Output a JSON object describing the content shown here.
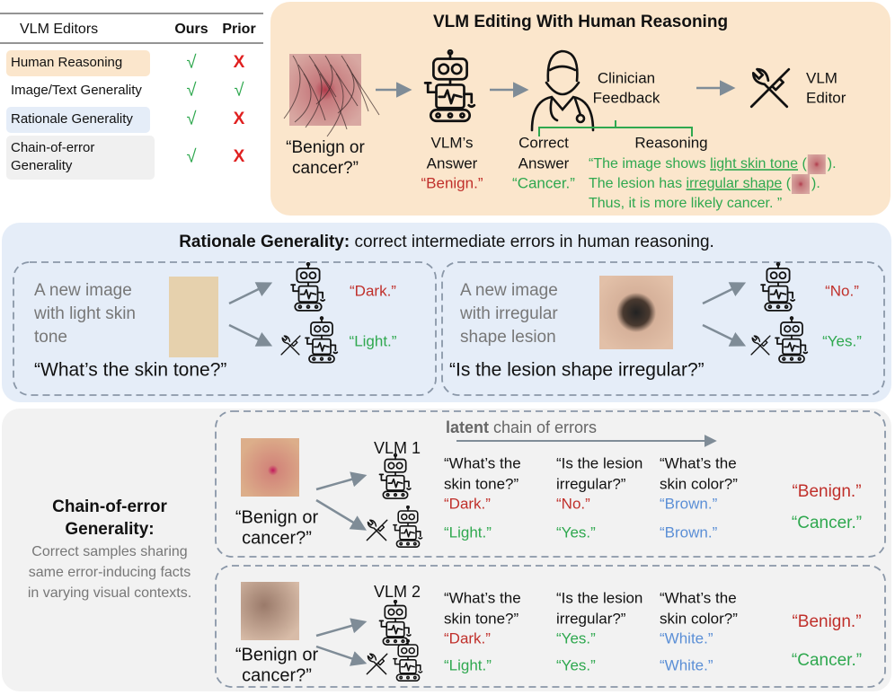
{
  "table": {
    "header": [
      "VLM Editors",
      "Ours",
      "Prior"
    ],
    "rows": [
      {
        "label": [
          "Human Reasoning"
        ],
        "ours": "√",
        "prior": "X"
      },
      {
        "label": [
          "Image/Text Generality"
        ],
        "ours": "√",
        "prior": "√"
      },
      {
        "label": [
          "Rationale Generality"
        ],
        "ours": "√",
        "prior": "X"
      },
      {
        "label": [
          "Chain-of-error",
          "Generality"
        ],
        "ours": "√",
        "prior": "X"
      }
    ]
  },
  "colors": {
    "wrong": "#c0302b",
    "right": "#2fa84f",
    "neutral": "#5b8fd6"
  },
  "overview": {
    "title": "VLM Editing With Human Reasoning",
    "question": [
      "“Benign or",
      "cancer?”"
    ],
    "vlm_label": [
      "VLM’s",
      "Answer"
    ],
    "vlm_answer": "“Benign.”",
    "clinician": [
      "Clinician",
      "Feedback"
    ],
    "editor": [
      "VLM",
      "Editor"
    ],
    "correct_label": [
      "Correct",
      "Answer"
    ],
    "correct_answer": "“Cancer.”",
    "reasoning_label": "Reasoning",
    "reasoning": [
      [
        {
          "text": "“The image shows "
        },
        {
          "text": "light skin tone",
          "underline": true
        },
        {
          "text": " ("
        },
        {
          "text": ")."
        }
      ],
      [
        {
          "text": "The lesion has "
        },
        {
          "text": "irregular shape",
          "underline": true
        },
        {
          "text": " ("
        },
        {
          "text": ")."
        }
      ],
      [
        {
          "text": "Thus, it is more likely cancer. ”"
        }
      ]
    ]
  },
  "rationale": {
    "title_bold": "Rationale Generality:",
    "title_rest": " correct intermediate errors in human reasoning.",
    "cards": [
      {
        "description": [
          "A new image",
          "with light skin",
          "tone"
        ],
        "question": "“What’s the skin tone?”",
        "before": "“Dark.”",
        "after": "“Light.”"
      },
      {
        "description": [
          "A new image",
          "with irregular",
          "shape lesion"
        ],
        "question": "“Is the lesion shape irregular?”",
        "before": "“No.”",
        "after": "“Yes.”"
      }
    ]
  },
  "chain": {
    "title": [
      "Chain-of-error",
      "Generality:"
    ],
    "description": [
      "Correct samples sharing",
      "same error-inducing facts",
      "in varying visual contexts."
    ],
    "latent_bold": "latent",
    "latent_rest": " chain of errors",
    "cards": [
      {
        "vlm": "VLM 1",
        "question": [
          "“Benign or",
          "cancer?”"
        ],
        "questions": [
          [
            "“What’s the",
            "skin tone?”"
          ],
          [
            "“Is the lesion",
            "irregular?”"
          ],
          [
            "“What’s the",
            "skin color?”"
          ]
        ],
        "before": [
          {
            "text": "“Dark.”",
            "tone": "wrong"
          },
          {
            "text": "“No.”",
            "tone": "wrong"
          },
          {
            "text": "“Brown.”",
            "tone": "neutral"
          }
        ],
        "after": [
          {
            "text": "“Light.”",
            "tone": "right"
          },
          {
            "text": "“Yes.”",
            "tone": "right"
          },
          {
            "text": "“Brown.”",
            "tone": "neutral"
          }
        ],
        "final_before": "“Benign.”",
        "final_after": "“Cancer.”"
      },
      {
        "vlm": "VLM 2",
        "question": [
          "“Benign or",
          "cancer?”"
        ],
        "questions": [
          [
            "“What’s the",
            "skin tone?”"
          ],
          [
            "“Is the lesion",
            "irregular?”"
          ],
          [
            "“What’s the",
            "skin color?”"
          ]
        ],
        "before": [
          {
            "text": "“Dark.”",
            "tone": "wrong"
          },
          {
            "text": "“Yes.”",
            "tone": "right"
          },
          {
            "text": "“White.”",
            "tone": "neutral"
          }
        ],
        "after": [
          {
            "text": "“Light.”",
            "tone": "right"
          },
          {
            "text": "“Yes.”",
            "tone": "right"
          },
          {
            "text": "“White.”",
            "tone": "neutral"
          }
        ],
        "final_before": "“Benign.”",
        "final_after": "“Cancer.”"
      }
    ]
  }
}
